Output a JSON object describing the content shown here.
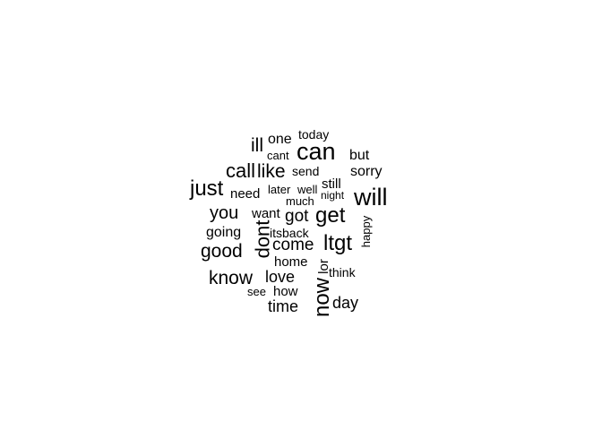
{
  "words": [
    "can",
    "will",
    "just",
    "get",
    "now",
    "ltgt",
    "dont",
    "call",
    "like",
    "ill",
    "know",
    "good",
    "you",
    "come",
    "got",
    "love",
    "day",
    "time",
    "going",
    "one",
    "home",
    "but",
    "sorry",
    "need",
    "want",
    "today",
    "send",
    "still",
    "lor",
    "how",
    "itsback",
    "think",
    "happy",
    "later",
    "well",
    "cant",
    "much",
    "night",
    "see"
  ],
  "text_color": "#000000",
  "background_color": "#ffffff"
}
